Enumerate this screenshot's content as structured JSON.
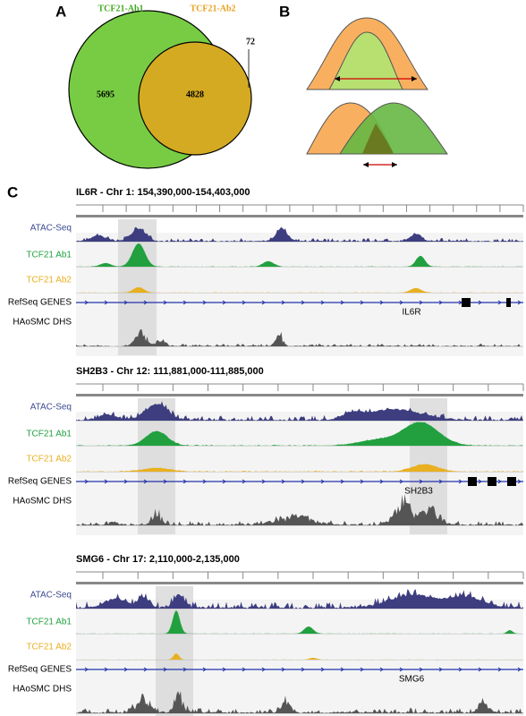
{
  "panels": {
    "a": {
      "label": "A",
      "set1": "TCF21-Ab1",
      "set2": "TCF21-Ab2",
      "only1": 5695,
      "both": 4828,
      "only2": 72
    },
    "b": {
      "label": "B"
    },
    "c": {
      "label": "C",
      "tracks": [
        "ATAC-Seq",
        "TCF21 Ab1",
        "TCF21 Ab2",
        "RefSeq GENES",
        "HAoSMC DHS"
      ],
      "loci": [
        {
          "title": "IL6R - Chr 1: 154,390,000-154,403,000",
          "gene": "IL6R"
        },
        {
          "title": "SH2B3 - Chr 12: 111,881,000-111,885,000",
          "gene": "SH2B3"
        },
        {
          "title": "SMG6 - Chr 17: 2,110,000-2,135,000",
          "gene": "SMG6"
        }
      ]
    }
  }
}
